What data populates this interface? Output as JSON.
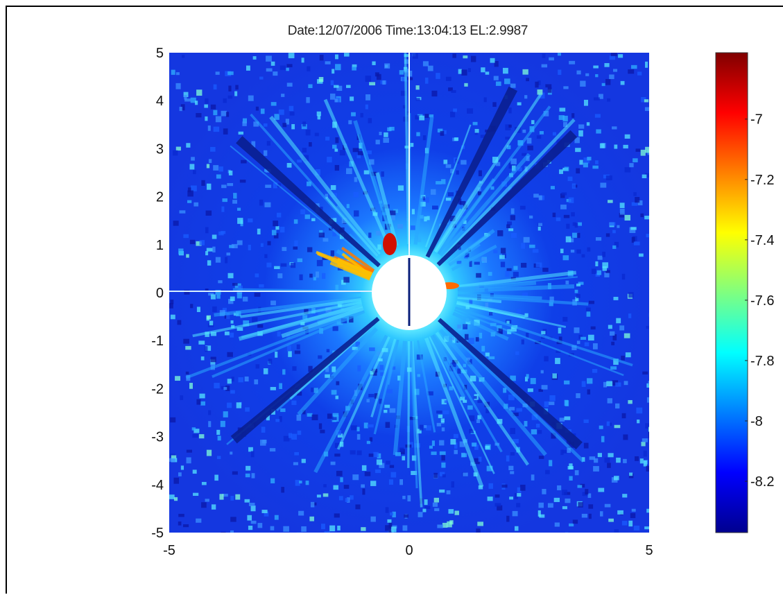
{
  "chart_data": {
    "type": "heatmap",
    "title": "Date:12/07/2006   Time:13:04:13   EL:2.9987",
    "xlim": [
      -5,
      5
    ],
    "ylim": [
      -5,
      5
    ],
    "x_ticks": [
      -5,
      0,
      5
    ],
    "y_ticks": [
      -5,
      -4,
      -3,
      -2,
      -1,
      0,
      1,
      2,
      3,
      4,
      5
    ],
    "colorbar": {
      "ticks": [
        -7,
        -7.2,
        -7.4,
        -7.6,
        -7.8,
        -8,
        -8.2
      ],
      "range": [
        -8.37,
        -6.78
      ],
      "colormap": "jet"
    },
    "occulter": {
      "center": [
        0,
        0
      ],
      "radius": 0.78
    },
    "dark_rays_deg": [
      44,
      63,
      138,
      220,
      318
    ],
    "bright_streamer_deg": [
      148,
      162
    ],
    "grid": false,
    "legend": "colorbar right"
  }
}
